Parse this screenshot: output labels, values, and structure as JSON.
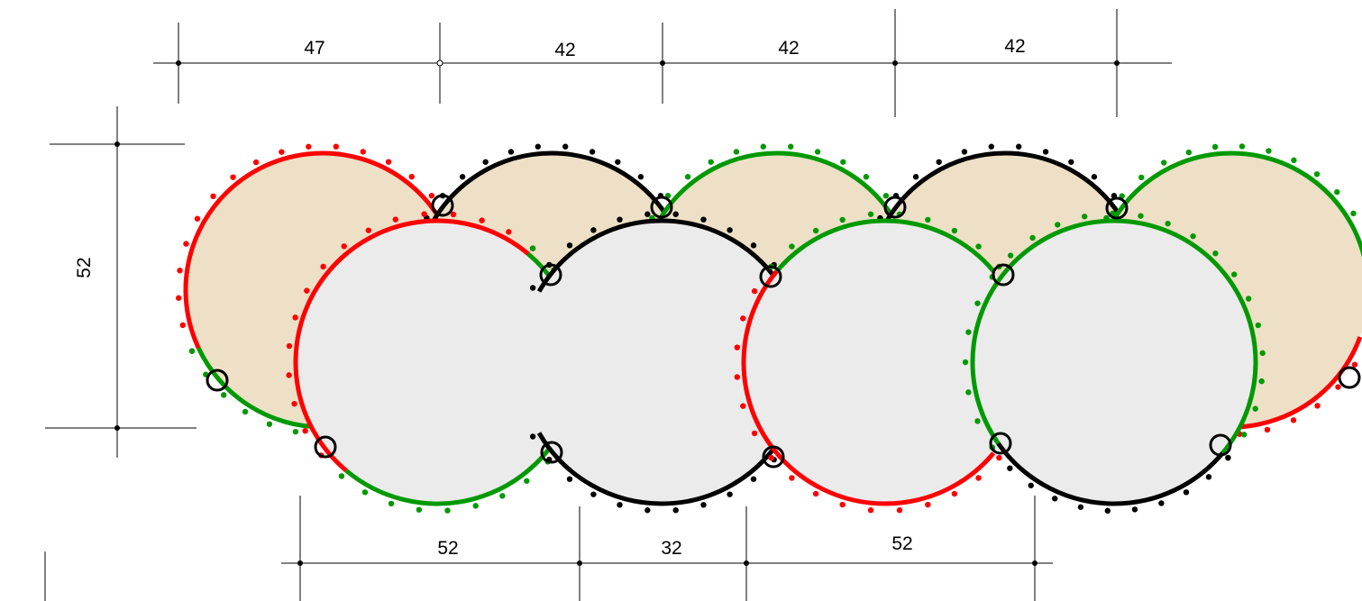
{
  "colors": {
    "red": "#ff0000",
    "black": "#000000",
    "green": "#009900",
    "back_fill": "#ede0c6",
    "front_fill": "#ebebeb"
  },
  "dimensions": {
    "top": [
      "47",
      "42",
      "42",
      "42"
    ],
    "bottom": [
      "52",
      "32",
      "52"
    ],
    "left": "52"
  },
  "back_piles": [
    {
      "segments": [
        {
          "color": "red",
          "from": 155,
          "to": 330
        },
        {
          "color": "green",
          "from": 90,
          "to": 155
        }
      ]
    },
    {
      "segments": [
        {
          "color": "black",
          "from": 210,
          "to": 330
        }
      ]
    },
    {
      "segments": [
        {
          "color": "green",
          "from": 210,
          "to": 330
        }
      ]
    },
    {
      "segments": [
        {
          "color": "black",
          "from": 210,
          "to": 330
        }
      ]
    },
    {
      "segments": [
        {
          "color": "green",
          "from": 210,
          "to": 360
        },
        {
          "color": "red",
          "from": 20,
          "to": 120
        }
      ]
    }
  ],
  "front_piles": [
    {
      "segments": [
        {
          "color": "red",
          "from": 130,
          "to": 310
        },
        {
          "color": "green",
          "from": 20,
          "to": 130
        },
        {
          "color": "green",
          "from": 310,
          "to": 380
        }
      ]
    },
    {
      "segments": [
        {
          "color": "black",
          "from": 210,
          "to": 330
        },
        {
          "color": "black",
          "from": 30,
          "to": 150
        }
      ]
    },
    {
      "segments": [
        {
          "color": "red",
          "from": 140,
          "to": 220
        },
        {
          "color": "green",
          "from": 220,
          "to": 320
        },
        {
          "color": "red",
          "from": 40,
          "to": 140
        }
      ]
    },
    {
      "segments": [
        {
          "color": "green",
          "from": 215,
          "to": 400
        },
        {
          "color": "black",
          "from": 40,
          "to": 145
        },
        {
          "color": "green",
          "from": 145,
          "to": 215
        }
      ]
    }
  ]
}
